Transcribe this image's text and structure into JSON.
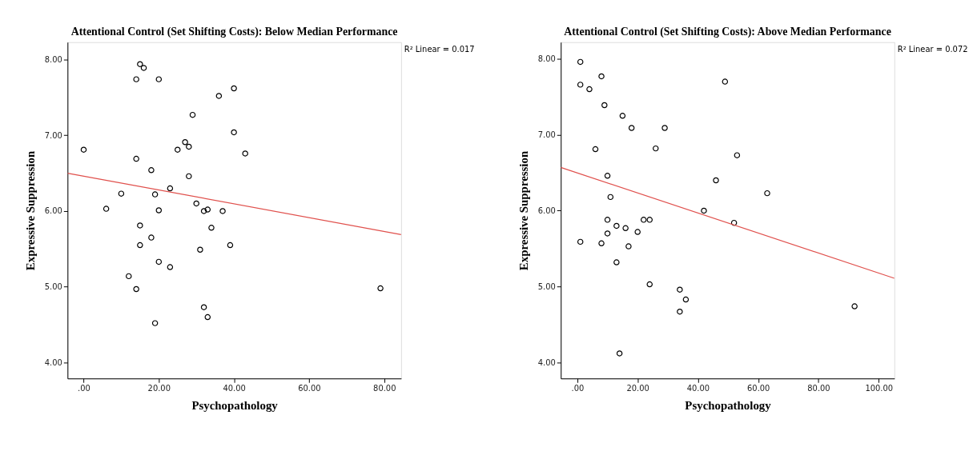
{
  "chart_data": [
    {
      "type": "scatter",
      "title": "Attentional Control (Set Shifting Costs): Below Median Performance",
      "xlabel": "Psychopathology",
      "ylabel": "Expressive Suppression",
      "annotations": [
        "R² Linear = 0.017"
      ],
      "grid": false,
      "xlim": [
        -4.3,
        84.5
      ],
      "ylim": [
        3.79,
        8.23
      ],
      "xticks": [
        {
          "value": 0,
          "label": ".00"
        },
        {
          "value": 20,
          "label": "20.00"
        },
        {
          "value": 40,
          "label": "40.00"
        },
        {
          "value": 60,
          "label": "60.00"
        },
        {
          "value": 80,
          "label": "80.00"
        }
      ],
      "yticks": [
        {
          "value": 4,
          "label": "4.00"
        },
        {
          "value": 5,
          "label": "5.00"
        },
        {
          "value": 6,
          "label": "6.00"
        },
        {
          "value": 7,
          "label": "7.00"
        },
        {
          "value": 8,
          "label": "8.00"
        }
      ],
      "series": [
        {
          "marker": "circle",
          "color": "#000000",
          "x": [
            15,
            16,
            14,
            20,
            40,
            36,
            29,
            40,
            0,
            27,
            28,
            25,
            43,
            14,
            18,
            28,
            23,
            10,
            19,
            6,
            20,
            30,
            32,
            33,
            37,
            15,
            34,
            18,
            15,
            39,
            31,
            20,
            23,
            12,
            14,
            79,
            32,
            33,
            19
          ],
          "values": [
            7.94,
            7.89,
            7.74,
            7.74,
            7.62,
            7.52,
            7.27,
            7.04,
            6.81,
            6.91,
            6.85,
            6.81,
            6.76,
            6.69,
            6.54,
            6.46,
            6.3,
            6.23,
            6.22,
            6.03,
            6.01,
            6.1,
            6.0,
            6.02,
            6.0,
            5.81,
            5.78,
            5.65,
            5.55,
            5.55,
            5.49,
            5.33,
            5.26,
            5.14,
            4.97,
            4.98,
            4.73,
            4.6,
            4.52
          ]
        },
        {
          "type": "line",
          "color": "#e0504c",
          "x": [
            -4.3,
            84.5
          ],
          "values": [
            6.5,
            5.69
          ]
        }
      ]
    },
    {
      "type": "scatter",
      "title": "Attentional Control (Set Shifting Costs): Above Median Performance",
      "xlabel": "Psychopathology",
      "ylabel": "Expressive Suppression",
      "annotations": [
        "R² Linear = 0.072"
      ],
      "grid": false,
      "xlim": [
        -5.5,
        105.2
      ],
      "ylim": [
        3.79,
        8.22
      ],
      "xticks": [
        {
          "value": 0,
          "label": ".00"
        },
        {
          "value": 20,
          "label": "20.00"
        },
        {
          "value": 40,
          "label": "40.00"
        },
        {
          "value": 60,
          "label": "60.00"
        },
        {
          "value": 80,
          "label": "80.00"
        },
        {
          "value": 100,
          "label": "100.00"
        }
      ],
      "yticks": [
        {
          "value": 4,
          "label": "4.00"
        },
        {
          "value": 5,
          "label": "5.00"
        },
        {
          "value": 6,
          "label": "6.00"
        },
        {
          "value": 7,
          "label": "7.00"
        },
        {
          "value": 8,
          "label": "8.00"
        }
      ],
      "series": [
        {
          "marker": "circle",
          "color": "#000000",
          "x": [
            1,
            1,
            4,
            8,
            9,
            15,
            18,
            29,
            49,
            6,
            26,
            53,
            10,
            46,
            63,
            11,
            42,
            52,
            10,
            22,
            24,
            13,
            16,
            10,
            20,
            1,
            8,
            17,
            13,
            24,
            34,
            36,
            34,
            92,
            14
          ],
          "values": [
            7.96,
            7.66,
            7.6,
            7.77,
            7.39,
            7.25,
            7.09,
            7.09,
            7.7,
            6.81,
            6.82,
            6.73,
            6.46,
            6.4,
            6.23,
            6.18,
            6.0,
            5.84,
            5.88,
            5.88,
            5.88,
            5.8,
            5.77,
            5.7,
            5.72,
            5.59,
            5.57,
            5.53,
            5.32,
            5.03,
            4.96,
            4.83,
            4.67,
            4.74,
            4.12
          ]
        },
        {
          "type": "line",
          "color": "#e0504c",
          "x": [
            -5.5,
            105.2
          ],
          "values": [
            6.57,
            5.11
          ]
        }
      ]
    }
  ]
}
